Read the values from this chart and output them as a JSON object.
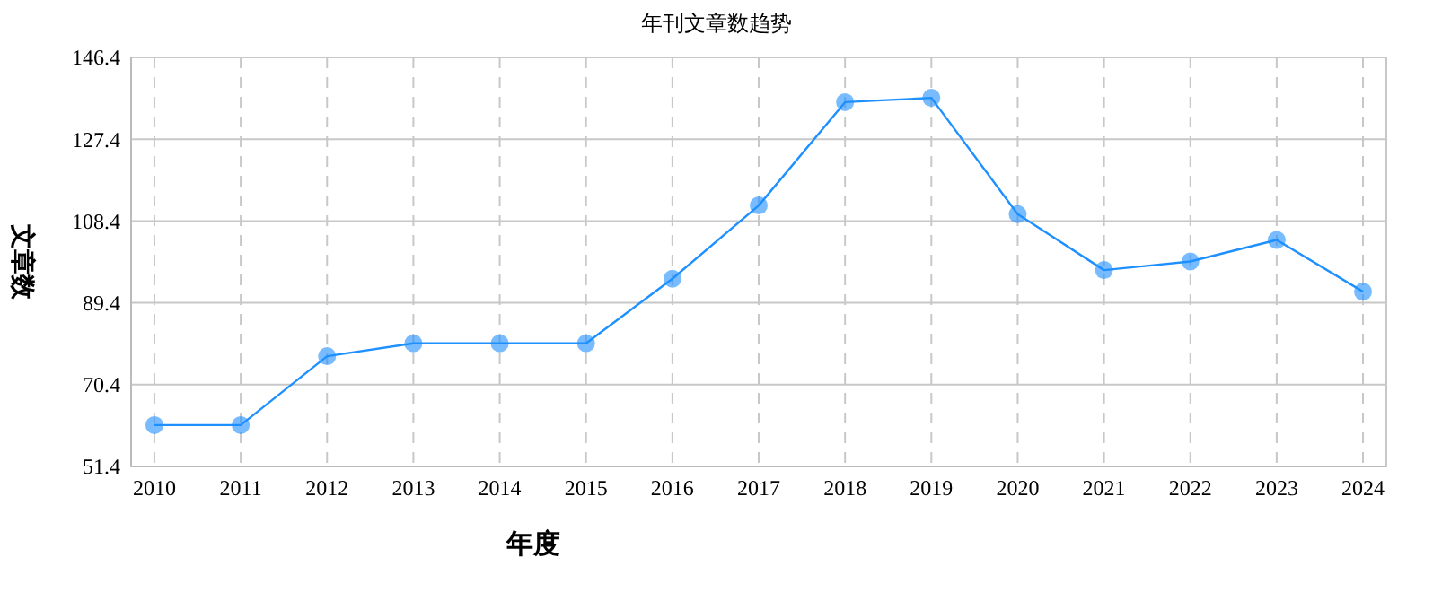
{
  "chart_data": {
    "type": "line",
    "title": "年刊文章数趋势",
    "xlabel": "年度",
    "ylabel": "文章数",
    "categories": [
      "2010",
      "2011",
      "2012",
      "2013",
      "2014",
      "2015",
      "2016",
      "2017",
      "2018",
      "2019",
      "2020",
      "2021",
      "2022",
      "2023",
      "2024"
    ],
    "series": [
      {
        "color": "#1e90ff",
        "values": [
          61,
          61,
          77,
          80,
          80,
          80,
          95,
          112,
          136,
          137,
          110,
          97,
          99,
          104,
          92
        ]
      }
    ],
    "ylim": [
      51.4,
      146.4
    ],
    "yticks": [
      51.4,
      70.4,
      89.4,
      108.4,
      127.4,
      146.4
    ],
    "grid": true,
    "marker": "circle",
    "line_style": "solid"
  }
}
